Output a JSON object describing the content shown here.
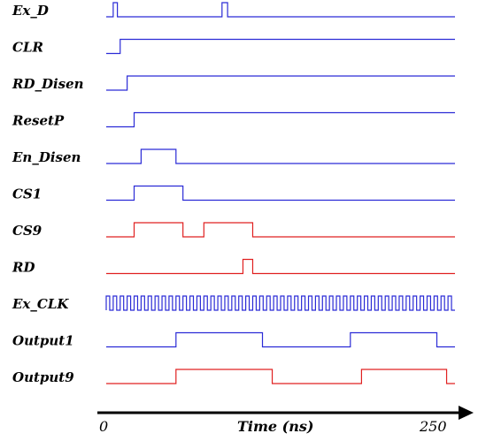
{
  "chart_data": {
    "type": "timing-diagram",
    "xlabel": "Time (ns)",
    "x_range": [
      0,
      250
    ],
    "tick_labels": [
      "0",
      "250"
    ],
    "colors": {
      "blue": "#2b2bd6",
      "red": "#e02020"
    },
    "signals": [
      {
        "name": "Ex_D",
        "color": "blue",
        "init": 0,
        "edges": [
          [
            5,
            1
          ],
          [
            8,
            0
          ],
          [
            83,
            1
          ],
          [
            87,
            0
          ]
        ]
      },
      {
        "name": "CLR",
        "color": "blue",
        "init": 0,
        "edges": [
          [
            10,
            1
          ]
        ]
      },
      {
        "name": "RD_Disen",
        "color": "blue",
        "init": 0,
        "edges": [
          [
            15,
            1
          ]
        ]
      },
      {
        "name": "ResetP",
        "color": "blue",
        "init": 0,
        "edges": [
          [
            20,
            1
          ]
        ]
      },
      {
        "name": "En_Disen",
        "color": "blue",
        "init": 0,
        "edges": [
          [
            25,
            1
          ],
          [
            50,
            0
          ]
        ]
      },
      {
        "name": "CS1",
        "color": "blue",
        "init": 0,
        "edges": [
          [
            20,
            1
          ],
          [
            55,
            0
          ]
        ]
      },
      {
        "name": "CS9",
        "color": "red",
        "init": 0,
        "edges": [
          [
            20,
            1
          ],
          [
            55,
            0
          ],
          [
            70,
            1
          ],
          [
            105,
            0
          ]
        ]
      },
      {
        "name": "RD",
        "color": "red",
        "init": 0,
        "edges": [
          [
            98,
            1
          ],
          [
            105,
            0
          ]
        ]
      },
      {
        "name": "Ex_CLK",
        "color": "blue",
        "clock": true,
        "period": 5,
        "duty": 0.5
      },
      {
        "name": "Output1",
        "color": "blue",
        "init": 0,
        "edges": [
          [
            50,
            1
          ],
          [
            112,
            0
          ],
          [
            175,
            1
          ],
          [
            237,
            0
          ]
        ]
      },
      {
        "name": "Output9",
        "color": "red",
        "init": 0,
        "edges": [
          [
            50,
            1
          ],
          [
            119,
            0
          ],
          [
            183,
            1
          ],
          [
            244,
            0
          ]
        ]
      }
    ]
  }
}
